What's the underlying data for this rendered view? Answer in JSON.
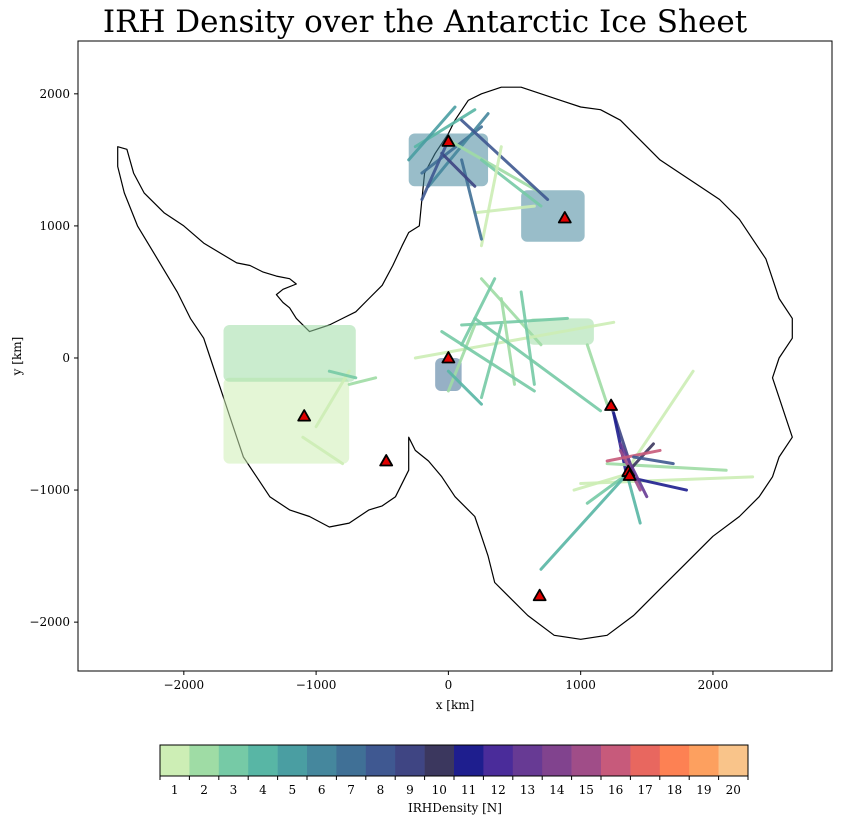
{
  "chart_data": {
    "type": "scatter",
    "title": "IRH Density over the Antarctic Ice Sheet",
    "xlabel": "x [km]",
    "ylabel": "y [km]",
    "xlim": [
      -2800,
      2900
    ],
    "ylim": [
      -2370,
      2400
    ],
    "x_ticks": [
      -2000,
      -1000,
      0,
      1000,
      2000
    ],
    "y_ticks": [
      -2000,
      -1000,
      0,
      1000,
      2000
    ],
    "x_tick_labels": [
      "−2000",
      "−1000",
      "0",
      "1000",
      "2000"
    ],
    "y_tick_labels": [
      "−2000",
      "−1000",
      "0",
      "1000",
      "2000"
    ],
    "grid": false,
    "coastline": [
      [
        -2500,
        1600
      ],
      [
        -2430,
        1580
      ],
      [
        -2380,
        1400
      ],
      [
        -2300,
        1250
      ],
      [
        -2150,
        1100
      ],
      [
        -2000,
        1000
      ],
      [
        -1850,
        870
      ],
      [
        -1700,
        780
      ],
      [
        -1600,
        720
      ],
      [
        -1500,
        700
      ],
      [
        -1400,
        650
      ],
      [
        -1300,
        620
      ],
      [
        -1200,
        600
      ],
      [
        -1150,
        560
      ],
      [
        -1250,
        520
      ],
      [
        -1300,
        480
      ],
      [
        -1250,
        420
      ],
      [
        -1200,
        380
      ],
      [
        -1150,
        300
      ],
      [
        -1050,
        200
      ],
      [
        -900,
        250
      ],
      [
        -800,
        300
      ],
      [
        -700,
        350
      ],
      [
        -600,
        450
      ],
      [
        -500,
        550
      ],
      [
        -420,
        700
      ],
      [
        -350,
        850
      ],
      [
        -300,
        950
      ],
      [
        -220,
        1000
      ],
      [
        -200,
        1200
      ],
      [
        -180,
        1400
      ],
      [
        -100,
        1550
      ],
      [
        0,
        1700
      ],
      [
        50,
        1800
      ],
      [
        150,
        1950
      ],
      [
        250,
        2000
      ],
      [
        400,
        2050
      ],
      [
        550,
        2050
      ],
      [
        700,
        2000
      ],
      [
        850,
        1950
      ],
      [
        1000,
        1900
      ],
      [
        1150,
        1880
      ],
      [
        1300,
        1800
      ],
      [
        1450,
        1650
      ],
      [
        1600,
        1500
      ],
      [
        1750,
        1400
      ],
      [
        1900,
        1300
      ],
      [
        2050,
        1200
      ],
      [
        2200,
        1050
      ],
      [
        2300,
        900
      ],
      [
        2400,
        750
      ],
      [
        2450,
        600
      ],
      [
        2500,
        450
      ],
      [
        2600,
        300
      ],
      [
        2600,
        150
      ],
      [
        2500,
        0
      ],
      [
        2450,
        -150
      ],
      [
        2500,
        -300
      ],
      [
        2550,
        -450
      ],
      [
        2600,
        -600
      ],
      [
        2500,
        -750
      ],
      [
        2450,
        -900
      ],
      [
        2350,
        -1050
      ],
      [
        2200,
        -1200
      ],
      [
        2000,
        -1350
      ],
      [
        1800,
        -1550
      ],
      [
        1600,
        -1750
      ],
      [
        1400,
        -1950
      ],
      [
        1200,
        -2100
      ],
      [
        1000,
        -2130
      ],
      [
        800,
        -2100
      ],
      [
        600,
        -1950
      ],
      [
        450,
        -1800
      ],
      [
        350,
        -1700
      ],
      [
        300,
        -1500
      ],
      [
        250,
        -1350
      ],
      [
        200,
        -1200
      ],
      [
        50,
        -1050
      ],
      [
        -50,
        -900
      ],
      [
        -150,
        -780
      ],
      [
        -250,
        -700
      ],
      [
        -300,
        -600
      ],
      [
        -300,
        -850
      ],
      [
        -400,
        -1050
      ],
      [
        -500,
        -1120
      ],
      [
        -600,
        -1150
      ],
      [
        -750,
        -1250
      ],
      [
        -900,
        -1280
      ],
      [
        -1050,
        -1200
      ],
      [
        -1200,
        -1150
      ],
      [
        -1350,
        -1050
      ],
      [
        -1450,
        -900
      ],
      [
        -1550,
        -750
      ],
      [
        -1600,
        -600
      ],
      [
        -1650,
        -450
      ],
      [
        -1700,
        -300
      ],
      [
        -1750,
        -150
      ],
      [
        -1800,
        0
      ],
      [
        -1850,
        150
      ],
      [
        -1950,
        300
      ],
      [
        -2050,
        500
      ],
      [
        -2200,
        750
      ],
      [
        -2350,
        1000
      ],
      [
        -2450,
        1250
      ],
      [
        -2500,
        1450
      ],
      [
        -2500,
        1600
      ]
    ],
    "stations": [
      {
        "x": 0,
        "y": 1640
      },
      {
        "x": 880,
        "y": 1060
      },
      {
        "x": 0,
        "y": 0
      },
      {
        "x": -1090,
        "y": -440
      },
      {
        "x": -470,
        "y": -780
      },
      {
        "x": 1230,
        "y": -360
      },
      {
        "x": 1360,
        "y": -860
      },
      {
        "x": 1370,
        "y": -890
      },
      {
        "x": 690,
        "y": -1800
      }
    ],
    "track_segments": [
      {
        "x1": -250,
        "y1": 1600,
        "x2": 200,
        "y2": 1880,
        "v": 4
      },
      {
        "x1": -200,
        "y1": 1400,
        "x2": 250,
        "y2": 1750,
        "v": 7
      },
      {
        "x1": -150,
        "y1": 1300,
        "x2": 300,
        "y2": 1850,
        "v": 6
      },
      {
        "x1": 0,
        "y1": 1650,
        "x2": 700,
        "y2": 1250,
        "v": 2
      },
      {
        "x1": 100,
        "y1": 1800,
        "x2": 750,
        "y2": 1200,
        "v": 8
      },
      {
        "x1": 250,
        "y1": 1500,
        "x2": 700,
        "y2": 1150,
        "v": 3
      },
      {
        "x1": 200,
        "y1": 1100,
        "x2": 650,
        "y2": 1150,
        "v": 1
      },
      {
        "x1": 250,
        "y1": 850,
        "x2": 400,
        "y2": 1600,
        "v": 1
      },
      {
        "x1": 100,
        "y1": 1500,
        "x2": 250,
        "y2": 900,
        "v": 7
      },
      {
        "x1": -50,
        "y1": 1550,
        "x2": 200,
        "y2": 1300,
        "v": 9
      },
      {
        "x1": -300,
        "y1": 1500,
        "x2": 50,
        "y2": 1900,
        "v": 5
      },
      {
        "x1": -200,
        "y1": 1200,
        "x2": 0,
        "y2": 1650,
        "v": 8
      },
      {
        "x1": 250,
        "y1": 600,
        "x2": 700,
        "y2": 100,
        "v": 2
      },
      {
        "x1": 350,
        "y1": 600,
        "x2": 100,
        "y2": 100,
        "v": 3
      },
      {
        "x1": -250,
        "y1": 0,
        "x2": 1250,
        "y2": 270,
        "v": 1
      },
      {
        "x1": 100,
        "y1": 250,
        "x2": 900,
        "y2": 300,
        "v": 3
      },
      {
        "x1": 400,
        "y1": 450,
        "x2": 500,
        "y2": -200,
        "v": 2
      },
      {
        "x1": 550,
        "y1": 500,
        "x2": 650,
        "y2": -200,
        "v": 3
      },
      {
        "x1": 400,
        "y1": 250,
        "x2": 250,
        "y2": -300,
        "v": 3
      },
      {
        "x1": 0,
        "y1": -250,
        "x2": 200,
        "y2": 250,
        "v": 2
      },
      {
        "x1": 200,
        "y1": 300,
        "x2": 1150,
        "y2": -400,
        "v": 3
      },
      {
        "x1": 1050,
        "y1": 100,
        "x2": 1200,
        "y2": -350,
        "v": 2
      },
      {
        "x1": -50,
        "y1": 200,
        "x2": 650,
        "y2": -250,
        "v": 3
      },
      {
        "x1": 0,
        "y1": -100,
        "x2": 250,
        "y2": -350,
        "v": 4
      },
      {
        "x1": 1230,
        "y1": -360,
        "x2": 1400,
        "y2": -880,
        "v": 9
      },
      {
        "x1": 1250,
        "y1": -420,
        "x2": 1350,
        "y2": -900,
        "v": 11
      },
      {
        "x1": 1000,
        "y1": -950,
        "x2": 2300,
        "y2": -900,
        "v": 1
      },
      {
        "x1": 1200,
        "y1": -800,
        "x2": 2100,
        "y2": -850,
        "v": 2
      },
      {
        "x1": 1350,
        "y1": -850,
        "x2": 1850,
        "y2": -100,
        "v": 1
      },
      {
        "x1": 1350,
        "y1": -870,
        "x2": 1550,
        "y2": -650,
        "v": 10
      },
      {
        "x1": 1300,
        "y1": -700,
        "x2": 1450,
        "y2": -1000,
        "v": 15
      },
      {
        "x1": 1350,
        "y1": -900,
        "x2": 1800,
        "y2": -1000,
        "v": 11
      },
      {
        "x1": 1350,
        "y1": -880,
        "x2": 1050,
        "y2": -1100,
        "v": 3
      },
      {
        "x1": 1350,
        "y1": -880,
        "x2": 700,
        "y2": -1600,
        "v": 4
      },
      {
        "x1": 1350,
        "y1": -880,
        "x2": 1450,
        "y2": -1250,
        "v": 4
      },
      {
        "x1": 1350,
        "y1": -880,
        "x2": 950,
        "y2": -1000,
        "v": 1
      },
      {
        "x1": 1300,
        "y1": -650,
        "x2": 1500,
        "y2": -1050,
        "v": 13
      },
      {
        "x1": 1200,
        "y1": -780,
        "x2": 1600,
        "y2": -700,
        "v": 16
      },
      {
        "x1": 1400,
        "y1": -750,
        "x2": 1700,
        "y2": -800,
        "v": 8
      },
      {
        "x1": -1000,
        "y1": -520,
        "x2": -750,
        "y2": -100,
        "v": 1
      },
      {
        "x1": -800,
        "y1": -800,
        "x2": -1100,
        "y2": -600,
        "v": 1
      },
      {
        "x1": -900,
        "y1": -100,
        "x2": -700,
        "y2": -150,
        "v": 3
      },
      {
        "x1": -750,
        "y1": -200,
        "x2": -550,
        "y2": -150,
        "v": 2
      }
    ],
    "patches": [
      {
        "x_range": [
          550,
          1030
        ],
        "y_range": [
          880,
          1270
        ],
        "v": 6
      },
      {
        "x_range": [
          -1700,
          -750
        ],
        "y_range": [
          -800,
          -150
        ],
        "v": 1
      },
      {
        "x_range": [
          -1700,
          -700
        ],
        "y_range": [
          -180,
          250
        ],
        "v": 2
      },
      {
        "x_range": [
          -100,
          100
        ],
        "y_range": [
          -250,
          0
        ],
        "v": 7
      },
      {
        "x_range": [
          600,
          1100
        ],
        "y_range": [
          100,
          300
        ],
        "v": 2
      },
      {
        "x_range": [
          -300,
          300
        ],
        "y_range": [
          1300,
          1700
        ],
        "v": 6
      }
    ],
    "colorbar": {
      "label": "IRHDensity [N]",
      "ticks": [
        "1",
        "2",
        "3",
        "4",
        "5",
        "6",
        "7",
        "8",
        "9",
        "10",
        "11",
        "12",
        "13",
        "14",
        "15",
        "16",
        "17",
        "18",
        "19",
        "20"
      ],
      "colors": [
        "#cdeeb5",
        "#9fdca5",
        "#76caa6",
        "#58b6a5",
        "#4a9ea2",
        "#45879d",
        "#407096",
        "#3f5891",
        "#3f4583",
        "#3b375e",
        "#1e1e8e",
        "#4a2c9a",
        "#673a94",
        "#81438e",
        "#a04d88",
        "#c75a7b",
        "#e8675f",
        "#fd8153",
        "#fda05f",
        "#f9c48a"
      ]
    }
  }
}
